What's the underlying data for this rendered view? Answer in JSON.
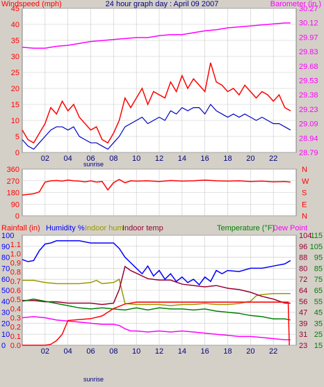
{
  "colors": {
    "bg": "#d4d0c8",
    "plot": "#ffffff",
    "grid": "#c8c8c8",
    "frame": "#808080",
    "windspeed": "#ff0000",
    "windavg": "#0000c0",
    "barometer": "#ff00ff",
    "winddir": "#ff0000",
    "rain": "#ff0000",
    "humidity": "#0000ff",
    "indoor_hum": "#999900",
    "indoor_temp": "#990033",
    "temperature": "#008000",
    "dewpoint": "#ff00ff",
    "title": "#000080"
  },
  "chart_data": [
    {
      "type": "line",
      "title": "24 hour graph day : April 09 2007",
      "left_label": "Windspeed (mph)",
      "right_label": "Barometer (in.)",
      "x_ticks": [
        "02",
        "04",
        "06",
        "08",
        "10",
        "12",
        "14",
        "16",
        "18",
        "20",
        "22"
      ],
      "sunrise_label": "sunrise",
      "sunrise_hour": 6,
      "xlim": [
        0,
        24
      ],
      "ylim_left": [
        0,
        45
      ],
      "y_ticks_left": [
        "0",
        "5",
        "10",
        "15",
        "20",
        "25",
        "30",
        "35",
        "40",
        "45"
      ],
      "ylim_right": [
        28.79,
        30.27
      ],
      "y_ticks_right": [
        "28.79",
        "28.94",
        "29.09",
        "29.23",
        "29.38",
        "29.53",
        "29.68",
        "29.83",
        "29.97",
        "30.12",
        "30.27"
      ],
      "series": [
        {
          "key": "gust",
          "axis": "left",
          "x": [
            0,
            0.5,
            1,
            1.5,
            2,
            2.5,
            3,
            3.5,
            4,
            4.5,
            5,
            5.5,
            6,
            6.5,
            7,
            7.5,
            8,
            8.5,
            9,
            9.5,
            10,
            10.5,
            11,
            11.5,
            12,
            12.5,
            13,
            13.5,
            14,
            14.5,
            15,
            15.5,
            16,
            16.5,
            17,
            17.5,
            18,
            18.5,
            19,
            19.5,
            20,
            20.5,
            21,
            21.5,
            22,
            22.5,
            23,
            23.5
          ],
          "values": [
            7,
            4,
            3,
            6,
            9,
            14,
            12,
            16,
            13,
            15,
            11,
            9,
            7,
            8,
            4,
            3,
            6,
            10,
            17,
            14,
            17,
            20,
            15,
            19,
            18,
            17,
            22,
            19,
            24,
            20,
            23,
            21,
            19,
            28,
            22,
            21,
            19,
            20,
            18,
            21,
            19,
            17,
            19,
            18,
            16,
            18,
            14,
            13
          ]
        },
        {
          "key": "average",
          "axis": "left",
          "x": [
            0,
            0.5,
            1,
            1.5,
            2,
            2.5,
            3,
            3.5,
            4,
            4.5,
            5,
            5.5,
            6,
            6.5,
            7,
            7.5,
            8,
            8.5,
            9,
            9.5,
            10,
            10.5,
            11,
            11.5,
            12,
            12.5,
            13,
            13.5,
            14,
            14.5,
            15,
            15.5,
            16,
            16.5,
            17,
            17.5,
            18,
            18.5,
            19,
            19.5,
            20,
            20.5,
            21,
            21.5,
            22,
            22.5,
            23,
            23.5
          ],
          "values": [
            4,
            2,
            1,
            3,
            5,
            7,
            8,
            8,
            7,
            8,
            5,
            4,
            3,
            3,
            2,
            1,
            3,
            5,
            8,
            9,
            10,
            11,
            9,
            10,
            11,
            10,
            13,
            12,
            14,
            13,
            14,
            14,
            12,
            15,
            13,
            12,
            11,
            12,
            11,
            12,
            11,
            10,
            11,
            10,
            9,
            9,
            8,
            7
          ]
        },
        {
          "key": "barometer",
          "axis": "right",
          "x": [
            0,
            1,
            2,
            3,
            4,
            5,
            6,
            7,
            8,
            9,
            10,
            11,
            12,
            13,
            14,
            15,
            16,
            17,
            18,
            19,
            20,
            21,
            22,
            23,
            23.5
          ],
          "values": [
            29.87,
            29.86,
            29.86,
            29.88,
            29.89,
            29.91,
            29.93,
            29.94,
            29.95,
            29.96,
            29.97,
            29.97,
            29.99,
            30.0,
            30.0,
            30.02,
            30.04,
            30.05,
            30.07,
            30.08,
            30.09,
            30.1,
            30.11,
            30.12,
            30.12
          ]
        }
      ]
    },
    {
      "type": "line",
      "left_label": "",
      "ylim": [
        0,
        360
      ],
      "y_ticks": [
        "0",
        "90",
        "180",
        "270",
        "360"
      ],
      "right_ticks": [
        "N",
        "W",
        "S",
        "E",
        "N"
      ],
      "xlim": [
        0,
        24
      ],
      "series": [
        {
          "key": "winddir",
          "x": [
            0,
            0.5,
            1,
            1.5,
            2,
            2.5,
            3,
            3.5,
            4,
            4.5,
            5,
            5.5,
            6,
            6.5,
            7,
            7.5,
            8,
            8.5,
            9,
            9.5,
            10,
            11,
            12,
            13,
            14,
            15,
            16,
            17,
            18,
            19,
            20,
            21,
            22,
            23,
            23.5
          ],
          "values": [
            160,
            165,
            170,
            185,
            260,
            270,
            272,
            268,
            275,
            270,
            268,
            262,
            270,
            260,
            265,
            200,
            255,
            280,
            255,
            270,
            268,
            270,
            265,
            272,
            268,
            270,
            275,
            270,
            268,
            270,
            265,
            268,
            262,
            265,
            260
          ]
        }
      ]
    },
    {
      "type": "line",
      "labels": {
        "rain": "Rainfall (in)",
        "humidity": "Humidity %",
        "indoor_hum": "Indoor hum",
        "indoor_temp": "Indoor temp",
        "temperature": "Temperature (°F)",
        "dewpoint": "Dew Point"
      },
      "x_ticks": [
        "02",
        "04",
        "06",
        "08",
        "10",
        "12",
        "14",
        "16",
        "18",
        "20",
        "22"
      ],
      "sunrise_label": "sunrise",
      "sunrise_hour": 6,
      "xlim": [
        0,
        24
      ],
      "ylim_hum": [
        0,
        100
      ],
      "y_ticks_hum": [
        "0",
        "10",
        "20",
        "30",
        "40",
        "50",
        "60",
        "70",
        "80",
        "90",
        "100"
      ],
      "ylim_rain": [
        0,
        1.2
      ],
      "y_ticks_rain": [
        "0.0",
        "0.1",
        "0.2",
        "0.3",
        "0.4",
        "0.5",
        "0.6",
        "0.7",
        "0.8",
        "0.9",
        "1.0",
        "1.1"
      ],
      "ylim_indoor": [
        23,
        104
      ],
      "y_ticks_indoor": [
        "23",
        "31",
        "39",
        "47",
        "56",
        "64",
        "72",
        "80",
        "88",
        "96",
        "104"
      ],
      "ylim_temp": [
        15,
        115
      ],
      "y_ticks_temp": [
        "15",
        "25",
        "35",
        "45",
        "55",
        "65",
        "75",
        "85",
        "95",
        "105",
        "115"
      ],
      "series": [
        {
          "key": "humidity",
          "axis": "hum",
          "x": [
            0,
            0.5,
            1,
            1.5,
            2,
            2.5,
            3,
            4,
            5,
            6,
            7,
            8,
            8.5,
            9,
            9.5,
            10,
            10.5,
            11,
            11.5,
            12,
            12.5,
            13,
            13.5,
            14,
            14.5,
            15,
            15.5,
            16,
            16.5,
            17,
            17.5,
            18,
            19,
            20,
            21,
            22,
            23,
            23.5
          ],
          "values": [
            78,
            76,
            77,
            86,
            92,
            93,
            95,
            95,
            95,
            93,
            93,
            93,
            88,
            80,
            75,
            70,
            65,
            72,
            63,
            68,
            60,
            65,
            58,
            62,
            57,
            60,
            55,
            62,
            58,
            68,
            65,
            68,
            67,
            70,
            70,
            72,
            74,
            77
          ]
        },
        {
          "key": "indoor_hum",
          "axis": "hum",
          "x": [
            0,
            1,
            2,
            3,
            4,
            5,
            6,
            6.5,
            7,
            8,
            8.5,
            9,
            10,
            11,
            12,
            13,
            14,
            15,
            16,
            17,
            18,
            19,
            20,
            20.5,
            21,
            22,
            23,
            23.5
          ],
          "values": [
            59,
            59,
            57,
            56,
            56,
            56,
            57,
            59,
            56,
            57,
            60,
            38,
            37,
            37,
            37,
            36,
            37,
            37,
            38,
            37,
            37,
            38,
            40,
            45,
            46,
            47,
            47,
            47
          ]
        },
        {
          "key": "indoor_temp",
          "axis": "indoor",
          "x": [
            0,
            1,
            2,
            3,
            4,
            5,
            6,
            7,
            8,
            8.5,
            9,
            9.5,
            10,
            11,
            12,
            13,
            14,
            15,
            16,
            17,
            18,
            19,
            20,
            21,
            22,
            23,
            23.5
          ],
          "values": [
            56,
            56,
            55,
            55,
            54,
            54,
            54,
            53,
            54,
            64,
            81,
            78,
            76,
            72,
            71,
            71,
            68,
            67,
            66,
            67,
            65,
            64,
            62,
            59,
            57,
            54,
            54
          ]
        },
        {
          "key": "temperature",
          "axis": "temp",
          "x": [
            0,
            1,
            2,
            3,
            4,
            5,
            6,
            7,
            8,
            9,
            10,
            11,
            12,
            13,
            14,
            15,
            16,
            17,
            18,
            19,
            20,
            21,
            22,
            23,
            23.5
          ],
          "values": [
            55,
            57,
            55,
            53,
            51,
            49,
            48,
            49,
            48,
            47,
            49,
            47,
            49,
            48,
            48,
            47,
            48,
            46,
            45,
            44,
            42,
            41,
            39,
            39,
            38
          ]
        },
        {
          "key": "dewpoint",
          "axis": "temp",
          "x": [
            0,
            1,
            2,
            3,
            4,
            5,
            6,
            7,
            8,
            8.5,
            9,
            9.5,
            10,
            11,
            12,
            13,
            14,
            15,
            16,
            17,
            18,
            19,
            20,
            21,
            22,
            23,
            23.5
          ],
          "values": [
            40,
            41,
            40,
            38,
            37,
            36,
            35,
            34,
            34,
            33,
            30,
            28,
            28,
            27,
            28,
            27,
            28,
            27,
            26,
            25,
            24,
            23,
            23,
            22,
            21,
            20,
            20
          ]
        },
        {
          "key": "rain",
          "axis": "rain",
          "x": [
            0,
            1,
            2,
            2.5,
            3,
            3.5,
            4,
            5,
            6,
            7,
            8,
            9,
            10,
            12,
            14,
            16,
            18,
            20,
            22,
            23,
            23.3,
            23.4
          ],
          "values": [
            0,
            0,
            0,
            0.01,
            0.05,
            0.12,
            0.27,
            0.28,
            0.29,
            0.32,
            0.4,
            0.45,
            0.47,
            0.47,
            0.47,
            0.47,
            0.47,
            0.47,
            0.47,
            0.47,
            0.47,
            0
          ]
        }
      ]
    }
  ]
}
